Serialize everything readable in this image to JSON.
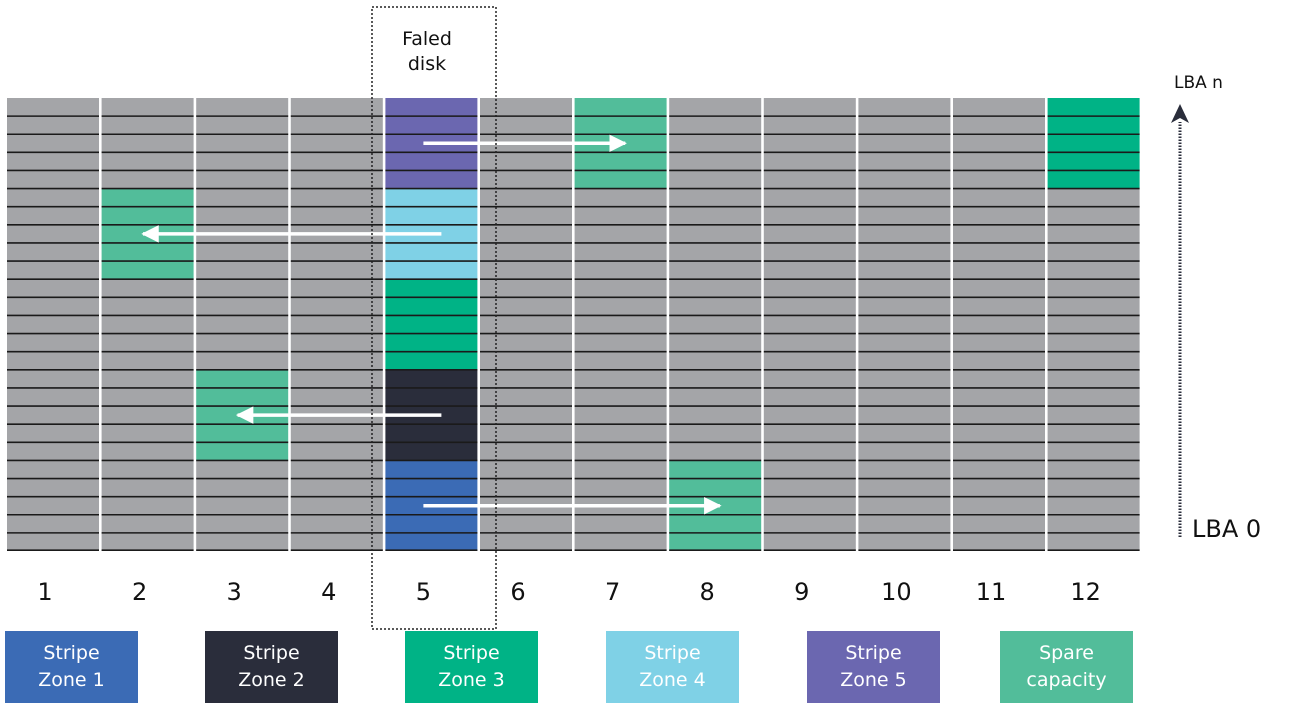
{
  "failed_disk_label": [
    "Faled",
    "disk"
  ],
  "disks": [
    "1",
    "2",
    "3",
    "4",
    "5",
    "6",
    "7",
    "8",
    "9",
    "10",
    "11",
    "12"
  ],
  "failed_disk_index": 4,
  "rows_per_zone": 5,
  "zone_rows": 5,
  "lba": {
    "top": "LBA n",
    "bottom": "LBA 0"
  },
  "colors": {
    "unused": "#a4a5a8",
    "line": "#1a1a1a",
    "zone1": "#3b6bb5",
    "zone2": "#2a2d3b",
    "zone3": "#00b386",
    "zone4": "#7fd1e6",
    "zone5": "#6b67b0",
    "spare": "#52bd9a",
    "arrow": "#ffffff"
  },
  "failed_disk_zones": [
    "zone5",
    "zone4",
    "zone3",
    "zone2",
    "zone1"
  ],
  "colored_cells": [
    {
      "disk": 7,
      "zone_from_top": 1,
      "color": "spare"
    },
    {
      "disk": 12,
      "zone_from_top": 1,
      "color": "zone3"
    },
    {
      "disk": 2,
      "zone_from_top": 2,
      "color": "spare"
    },
    {
      "disk": 3,
      "zone_from_top": 4,
      "color": "spare"
    },
    {
      "disk": 8,
      "zone_from_top": 5,
      "color": "spare"
    }
  ],
  "rebuild_arrows": [
    {
      "zone_from_top": 1,
      "to_disk": 7
    },
    {
      "zone_from_top": 2,
      "to_disk": 2
    },
    {
      "zone_from_top": 4,
      "to_disk": 3
    },
    {
      "zone_from_top": 5,
      "to_disk": 8
    }
  ],
  "legend": [
    {
      "lines": [
        "Stripe",
        "Zone 1"
      ],
      "color": "zone1",
      "text_color": "#ffffff"
    },
    {
      "lines": [
        "Stripe",
        "Zone 2"
      ],
      "color": "zone2",
      "text_color": "#ffffff"
    },
    {
      "lines": [
        "Stripe",
        "Zone 3"
      ],
      "color": "zone3",
      "text_color": "#ffffff"
    },
    {
      "lines": [
        "Stripe",
        "Zone 4"
      ],
      "color": "zone4",
      "text_color": "#ffffff"
    },
    {
      "lines": [
        "Stripe",
        "Zone 5"
      ],
      "color": "zone5",
      "text_color": "#ffffff"
    },
    {
      "lines": [
        "Spare",
        "capacity"
      ],
      "color": "spare",
      "text_color": "#ffffff"
    }
  ]
}
